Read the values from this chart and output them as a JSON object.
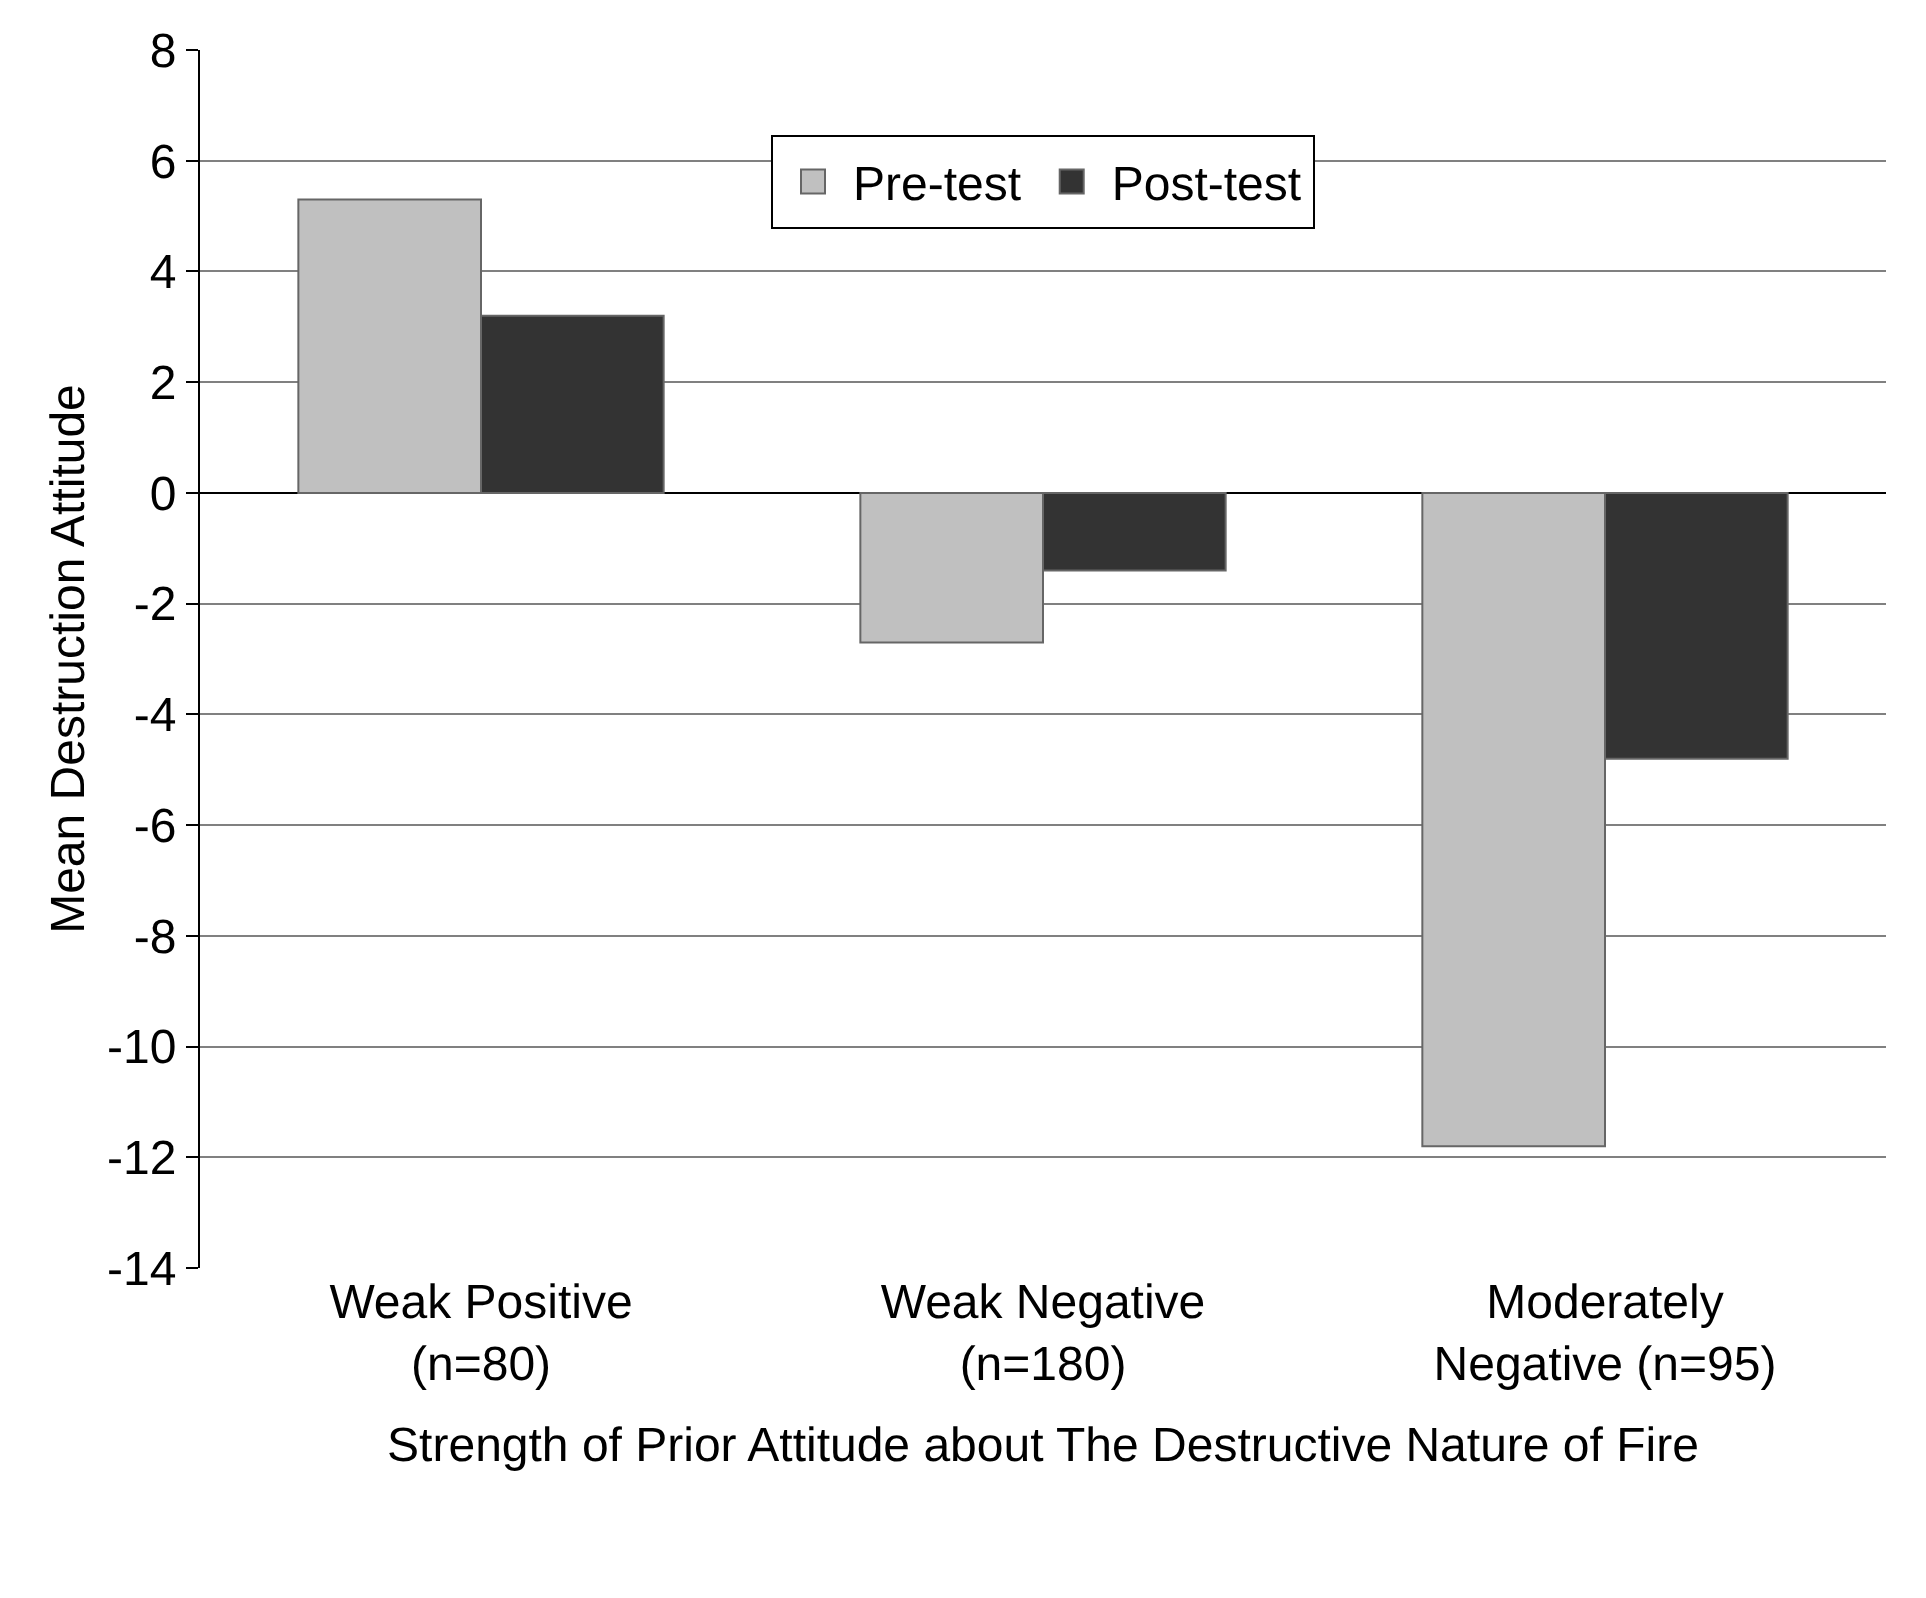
{
  "chart_data": {
    "type": "bar",
    "xlabel": "Strength of Prior Attitude about The Destructive Nature of Fire",
    "ylabel": "Mean Destruction Attitude",
    "categories": [
      "Weak Positive\n(n=80)",
      "Weak Negative\n(n=180)",
      "Moderately\nNegative (n=95)"
    ],
    "series": [
      {
        "name": "Pre-test",
        "color": "#c0c0c0",
        "values": [
          5.3,
          -2.7,
          -11.8
        ]
      },
      {
        "name": "Post-test",
        "color": "#333333",
        "values": [
          3.2,
          -1.4,
          -4.8
        ]
      }
    ],
    "ylim": [
      -14,
      8
    ],
    "yticks": [
      -14,
      -12,
      -10,
      -8,
      -6,
      -4,
      -2,
      0,
      2,
      4,
      6,
      8
    ],
    "grid": "y",
    "legend": "top"
  }
}
